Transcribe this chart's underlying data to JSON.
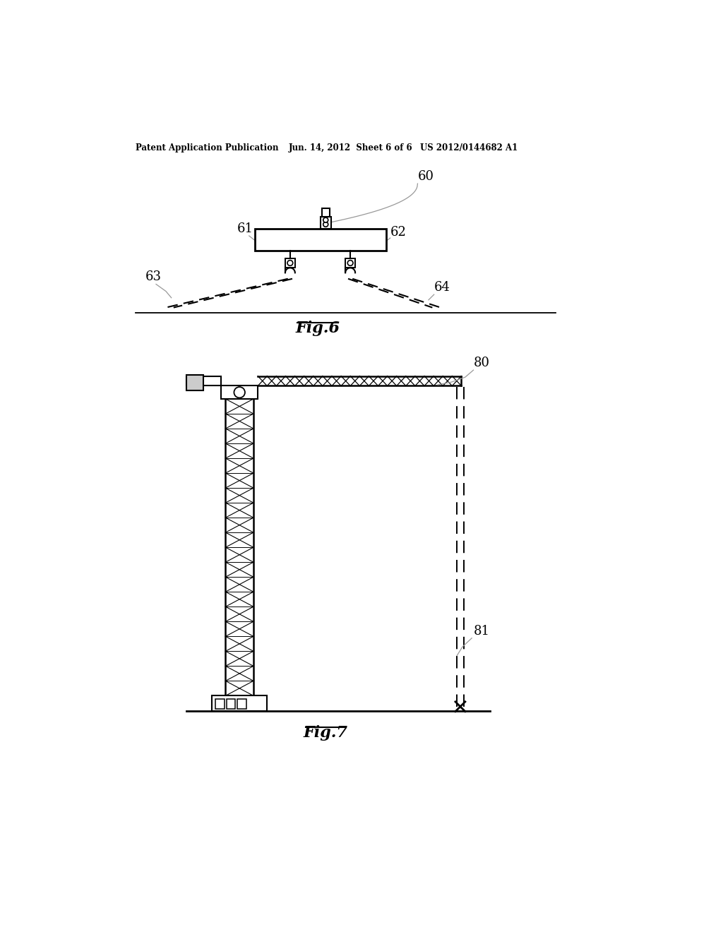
{
  "bg_color": "#ffffff",
  "header_left": "Patent Application Publication",
  "header_mid": "Jun. 14, 2012  Sheet 6 of 6",
  "header_right": "US 2012/0144682 A1",
  "fig6_label": "Fig.6",
  "fig7_label": "Fig.7",
  "label_60": "60",
  "label_61": "61",
  "label_62": "62",
  "label_63": "63",
  "label_64": "64",
  "label_80": "80",
  "label_81": "81",
  "line_color": "#000000",
  "leader_color": "#999999"
}
